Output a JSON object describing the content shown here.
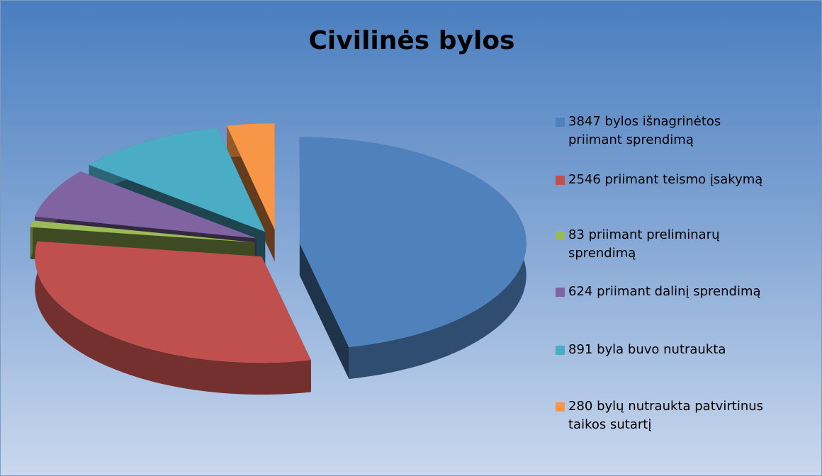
{
  "chart_data": {
    "type": "pie",
    "title": "Civilinės bylos",
    "categories": [
      "3847 bylos išnagrinėtos priimant sprendimą",
      "2546 priimant teismo įsakymą",
      "83 priimant preliminarų sprendimą",
      "624 priimant dalinį sprendimą",
      "891 byla buvo nutraukta",
      "280 bylų nutraukta patvirtinus taikos sutartį"
    ],
    "values": [
      3847,
      2546,
      83,
      624,
      891,
      280
    ],
    "colors": [
      "#4f81bd",
      "#c0504d",
      "#9bbb59",
      "#8064a2",
      "#4bacc6",
      "#f79646"
    ]
  }
}
